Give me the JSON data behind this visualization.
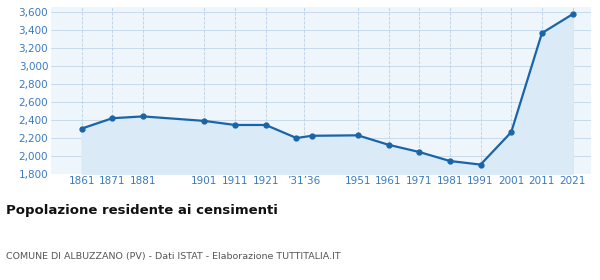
{
  "years": [
    1861,
    1871,
    1881,
    1901,
    1911,
    1921,
    1931,
    1936,
    1951,
    1961,
    1971,
    1981,
    1991,
    2001,
    2011,
    2021
  ],
  "population": [
    2300,
    2415,
    2435,
    2385,
    2340,
    2340,
    2195,
    2220,
    2225,
    2120,
    2040,
    1940,
    1900,
    2260,
    3360,
    3570
  ],
  "title": "Popolazione residente ai censimenti",
  "subtitle": "COMUNE DI ALBUZZANO (PV) - Dati ISTAT - Elaborazione TUTTITALIA.IT",
  "ylim": [
    1800,
    3650
  ],
  "yticks": [
    1800,
    2000,
    2200,
    2400,
    2600,
    2800,
    3000,
    3200,
    3400,
    3600
  ],
  "xlim_left": 1851,
  "xlim_right": 2027,
  "line_color": "#1a65a8",
  "fill_color": "#daeaf7",
  "marker_color": "#1a65a8",
  "bg_color": "#eef5fb",
  "grid_color": "#b8d0e8",
  "tick_color": "#3a7abf",
  "x_tick_positions": [
    1861,
    1871,
    1881,
    1901,
    1911,
    1921,
    1933.5,
    1951,
    1961,
    1971,
    1981,
    1991,
    2001,
    2011,
    2021
  ],
  "x_tick_labels": [
    "1861",
    "1871",
    "1881",
    "1901",
    "1911",
    "1921",
    "’31’36",
    "1951",
    "1961",
    "1971",
    "1981",
    "1991",
    "2001",
    "2011",
    "2021"
  ]
}
